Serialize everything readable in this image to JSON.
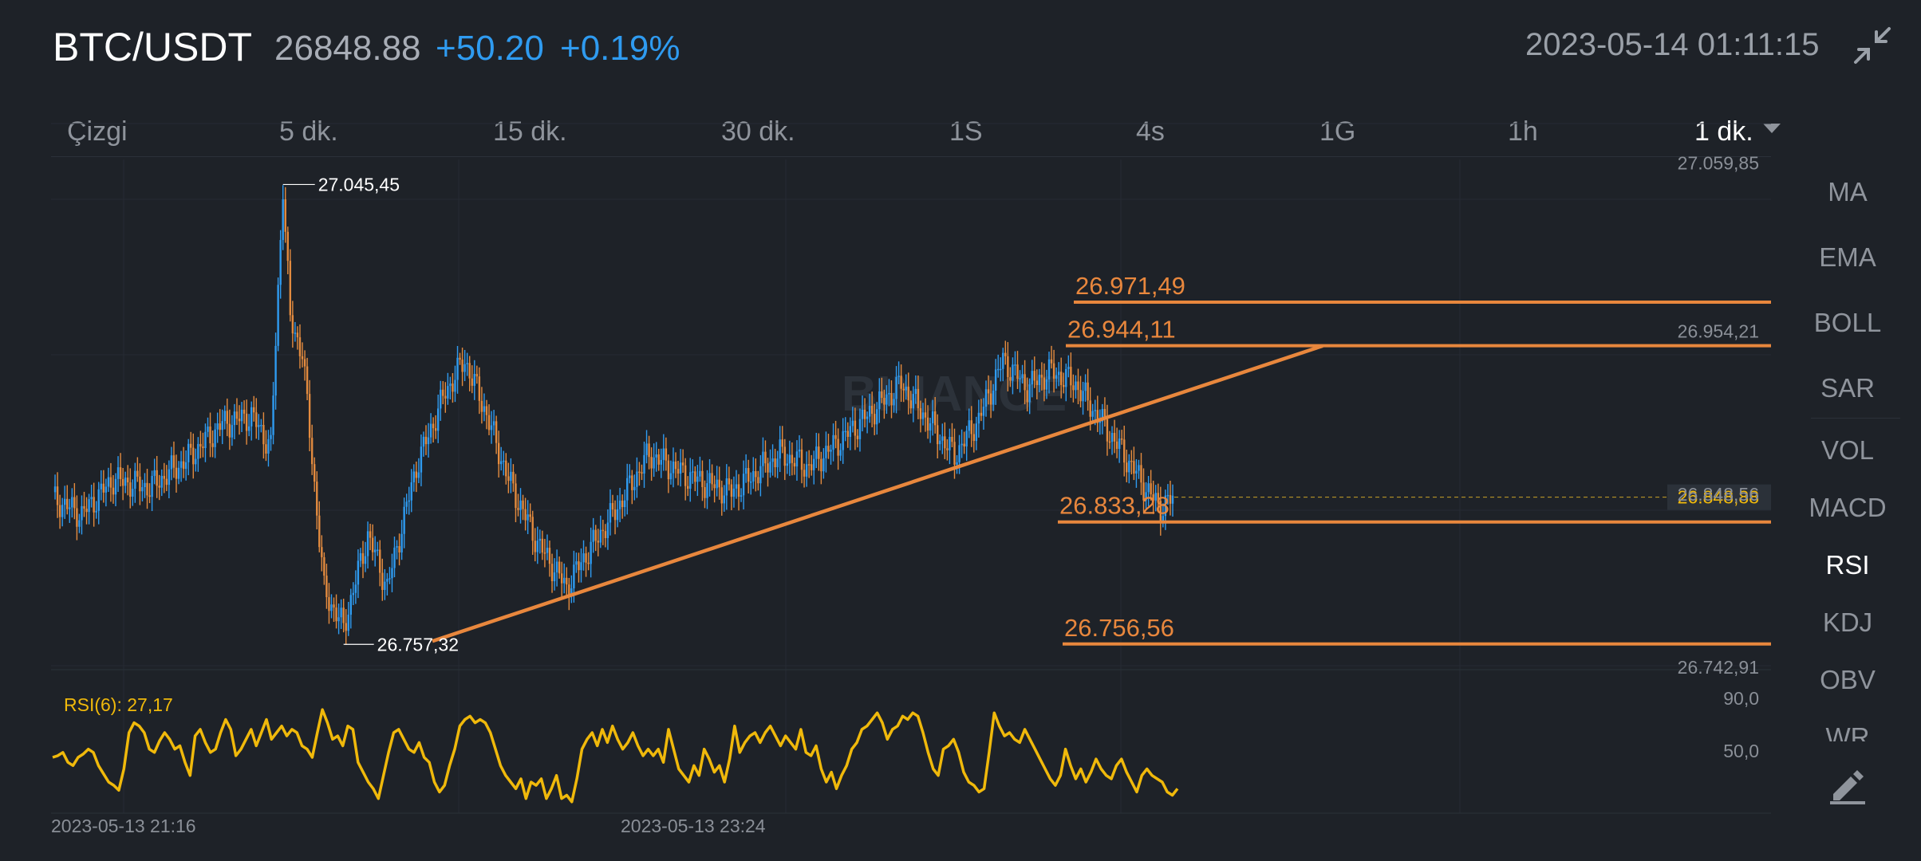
{
  "header": {
    "pair": "BTC/USDT",
    "last_price": "26848.88",
    "change": "+50.20",
    "change_pct": "+0.19%",
    "timestamp": "2023-05-14 01:11:15",
    "collapse_icon": "collapse-arrows-icon"
  },
  "intervals": [
    {
      "label": "Çizgi"
    },
    {
      "label": "5 dk."
    },
    {
      "label": "15 dk."
    },
    {
      "label": "30 dk."
    },
    {
      "label": "1S"
    },
    {
      "label": "4s"
    },
    {
      "label": "1G"
    },
    {
      "label": "1h"
    },
    {
      "label": "1 dk.",
      "active": true
    }
  ],
  "indicators": [
    "MA",
    "EMA",
    "BOLL",
    "SAR",
    "VOL",
    "MACD",
    "RSI",
    "KDJ",
    "OBV",
    "WR"
  ],
  "active_indicator": "RSI",
  "chart_data": {
    "type": "candlestick",
    "watermark": "BINANCE",
    "price_axis": {
      "ticks": [
        "27.059,85",
        "26.954,21",
        "26.848,56",
        "26.742,91"
      ],
      "range": [
        26720,
        27075
      ]
    },
    "current_price_label": "26.848,88",
    "current_price": 26848.88,
    "high_marker": "27.045,45",
    "high_value": 27045.45,
    "low_marker": "26.757,32",
    "low_value": 26757.32,
    "drawn_levels": [
      {
        "label": "26.971,49",
        "value": 26971.49
      },
      {
        "label": "26.944,11",
        "value": 26944.11
      },
      {
        "label": "26.833,28",
        "value": 26833.28
      },
      {
        "label": "26.756,56",
        "value": 26756.56
      }
    ],
    "trendline": {
      "from": 26757.32,
      "to": 26944
    },
    "time_axis": [
      "2023-05-13 21:16",
      "2023-05-13 23:24"
    ],
    "rsi": {
      "label": "RSI(6): 27,17",
      "ticks": [
        "90,0",
        "50,0"
      ],
      "values": [
        55,
        56,
        58,
        52,
        50,
        55,
        57,
        60,
        58,
        50,
        45,
        40,
        38,
        35,
        48,
        70,
        76,
        74,
        70,
        60,
        58,
        65,
        70,
        66,
        60,
        62,
        52,
        44,
        68,
        72,
        64,
        58,
        60,
        70,
        78,
        72,
        56,
        60,
        66,
        72,
        62,
        70,
        78,
        66,
        70,
        74,
        68,
        72,
        70,
        62,
        60,
        55,
        70,
        84,
        76,
        66,
        68,
        62,
        74,
        72,
        52,
        46,
        40,
        36,
        30,
        44,
        58,
        70,
        72,
        66,
        60,
        58,
        64,
        55,
        52,
        40,
        34,
        38,
        50,
        60,
        74,
        78,
        80,
        76,
        78,
        76,
        70,
        60,
        50,
        44,
        40,
        36,
        42,
        30,
        40,
        38,
        42,
        30,
        36,
        44,
        30,
        32,
        28,
        42,
        60,
        66,
        70,
        62,
        72,
        64,
        74,
        66,
        60,
        64,
        70,
        62,
        56,
        60,
        56,
        60,
        52,
        72,
        60,
        48,
        44,
        40,
        50,
        44,
        60,
        54,
        46,
        50,
        40,
        54,
        74,
        58,
        64,
        68,
        70,
        64,
        70,
        74,
        68,
        62,
        68,
        64,
        60,
        72,
        58,
        56,
        62,
        48,
        40,
        46,
        36,
        44,
        50,
        60,
        64,
        72,
        74,
        78,
        82,
        76,
        66,
        72,
        74,
        80,
        78,
        82,
        80,
        70,
        58,
        48,
        44,
        60,
        62,
        66,
        58,
        46,
        40,
        38,
        34,
        36,
        58,
        82,
        74,
        68,
        70,
        66,
        64,
        72,
        66,
        60,
        54,
        48,
        42,
        38,
        44,
        60,
        50,
        42,
        48,
        40,
        46,
        54,
        48,
        44,
        42,
        50,
        54,
        46,
        40,
        34,
        44,
        48,
        44,
        42,
        40,
        34,
        32,
        36
      ]
    }
  }
}
